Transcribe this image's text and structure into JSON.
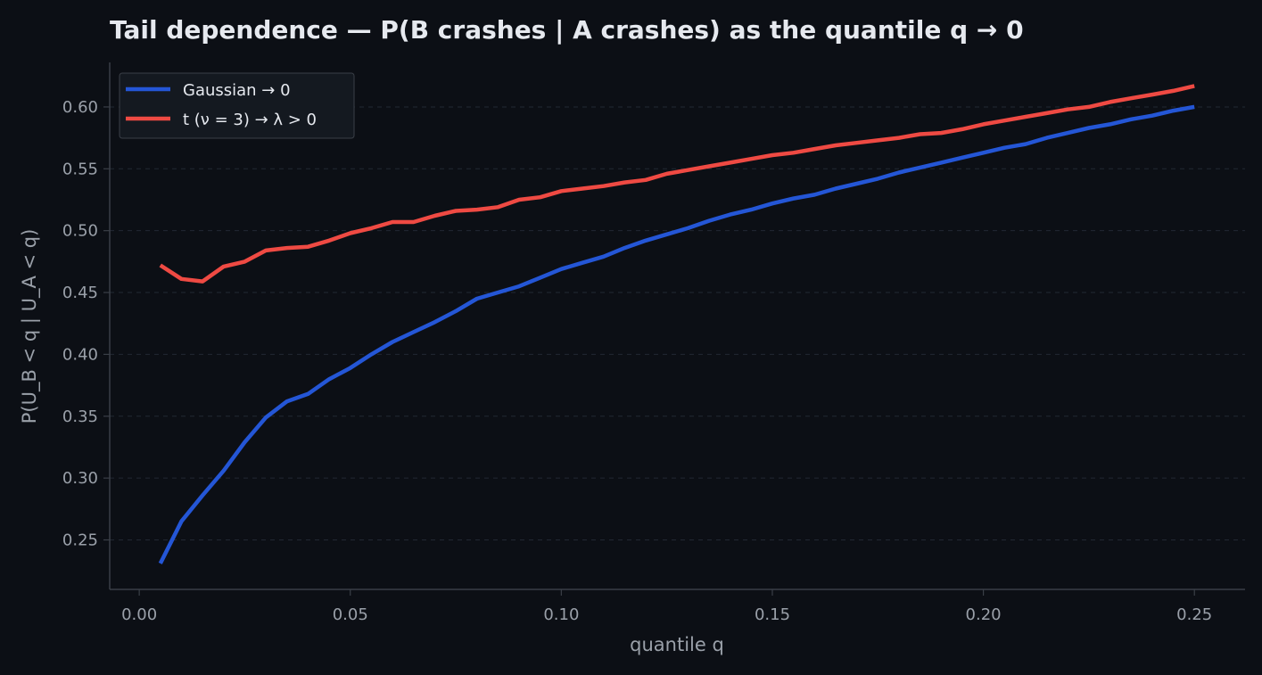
{
  "chart_data": {
    "type": "line",
    "title": "Tail dependence — P(B crashes | A crashes) as the quantile q → 0",
    "xlabel": "quantile q",
    "ylabel": "P(U_B < q | U_A < q)",
    "xlim": [
      -0.007,
      0.262
    ],
    "ylim": [
      0.21,
      0.636
    ],
    "xticks": [
      0.0,
      0.05,
      0.1,
      0.15,
      0.2,
      0.25
    ],
    "xtick_labels": [
      "0.00",
      "0.05",
      "0.10",
      "0.15",
      "0.20",
      "0.25"
    ],
    "yticks": [
      0.25,
      0.3,
      0.35,
      0.4,
      0.45,
      0.5,
      0.55,
      0.6
    ],
    "ytick_labels": [
      "0.25",
      "0.30",
      "0.35",
      "0.40",
      "0.45",
      "0.50",
      "0.55",
      "0.60"
    ],
    "grid": "horizontal dashed",
    "legend_position": "top-left",
    "x": [
      0.005,
      0.01,
      0.015,
      0.02,
      0.025,
      0.03,
      0.035,
      0.04,
      0.045,
      0.05,
      0.055,
      0.06,
      0.065,
      0.07,
      0.075,
      0.08,
      0.085,
      0.09,
      0.095,
      0.1,
      0.105,
      0.11,
      0.115,
      0.12,
      0.125,
      0.13,
      0.135,
      0.14,
      0.145,
      0.15,
      0.155,
      0.16,
      0.165,
      0.17,
      0.175,
      0.18,
      0.185,
      0.19,
      0.195,
      0.2,
      0.205,
      0.21,
      0.215,
      0.22,
      0.225,
      0.23,
      0.235,
      0.24,
      0.245,
      0.25
    ],
    "series": [
      {
        "name": "Gaussian → 0",
        "color": "#2456d6",
        "values": [
          0.231,
          0.265,
          0.286,
          0.306,
          0.329,
          0.349,
          0.362,
          0.368,
          0.38,
          0.389,
          0.4,
          0.41,
          0.418,
          0.426,
          0.435,
          0.445,
          0.45,
          0.455,
          0.462,
          0.469,
          0.474,
          0.479,
          0.486,
          0.492,
          0.497,
          0.502,
          0.508,
          0.513,
          0.517,
          0.522,
          0.526,
          0.529,
          0.534,
          0.538,
          0.542,
          0.547,
          0.551,
          0.555,
          0.559,
          0.563,
          0.567,
          0.57,
          0.575,
          0.579,
          0.583,
          0.586,
          0.59,
          0.593,
          0.597,
          0.6
        ]
      },
      {
        "name": "t (ν = 3) → λ > 0",
        "color": "#ef4a43",
        "values": [
          0.472,
          0.461,
          0.459,
          0.471,
          0.475,
          0.484,
          0.486,
          0.487,
          0.492,
          0.498,
          0.502,
          0.507,
          0.507,
          0.512,
          0.516,
          0.517,
          0.519,
          0.525,
          0.527,
          0.532,
          0.534,
          0.536,
          0.539,
          0.541,
          0.546,
          0.549,
          0.552,
          0.555,
          0.558,
          0.561,
          0.563,
          0.566,
          0.569,
          0.571,
          0.573,
          0.575,
          0.578,
          0.579,
          0.582,
          0.586,
          0.589,
          0.592,
          0.595,
          0.598,
          0.6,
          0.604,
          0.607,
          0.61,
          0.613,
          0.617
        ]
      }
    ]
  }
}
